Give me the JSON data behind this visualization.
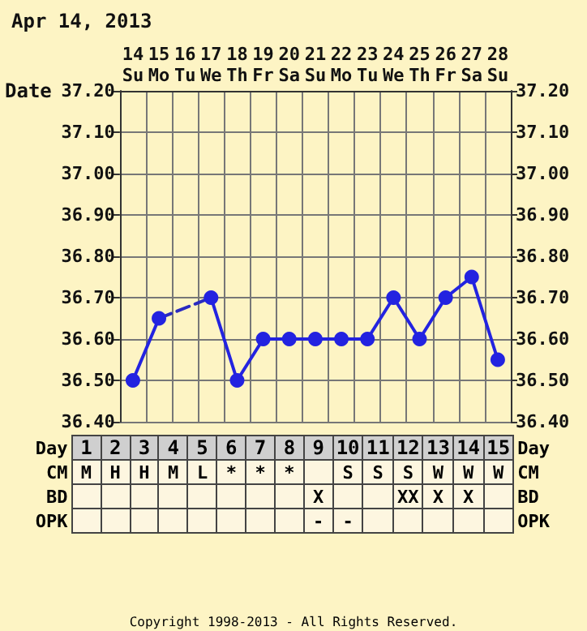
{
  "chart_data": {
    "type": "line",
    "title": "Apr 14, 2013",
    "xlabel": "Date",
    "categories": [
      "14\nSu",
      "15\nMo",
      "16\nTu",
      "17\nWe",
      "18\nTh",
      "19\nFr",
      "20\nSa",
      "21\nSu",
      "22\nMo",
      "23\nTu",
      "24\nWe",
      "25\nTh",
      "26\nFr",
      "27\nSa",
      "28\nSu"
    ],
    "series": [
      {
        "color": "#2323e0",
        "marker": "circle",
        "line_style": "solid",
        "values": [
          36.5,
          36.65,
          null,
          36.7,
          36.5,
          36.6,
          36.6,
          36.6,
          36.6,
          36.6,
          36.7,
          36.6,
          36.7,
          36.75,
          36.55
        ]
      },
      {
        "color": "#2a2ac0",
        "marker": "none",
        "line_style": "dashed",
        "x": [
          "15\nMo",
          "17\nWe"
        ],
        "values": [
          36.65,
          36.7
        ]
      }
    ],
    "ylim": [
      36.4,
      37.2
    ],
    "yticks": [
      {
        "value": 36.4,
        "label": "36.40"
      },
      {
        "value": 36.5,
        "label": "36.50"
      },
      {
        "value": 36.6,
        "label": "36.60"
      },
      {
        "value": 36.7,
        "label": "36.70"
      },
      {
        "value": 36.8,
        "label": "36.80"
      },
      {
        "value": 36.9,
        "label": "36.90"
      },
      {
        "value": 37.0,
        "label": "37.00"
      },
      {
        "value": 37.1,
        "label": "37.10"
      },
      {
        "value": 37.2,
        "label": "37.20"
      }
    ],
    "y2lim": [
      36.4,
      37.2
    ],
    "y2ticks": [
      {
        "value": 36.4,
        "label": "36.40"
      },
      {
        "value": 36.5,
        "label": "36.50"
      },
      {
        "value": 36.6,
        "label": "36.60"
      },
      {
        "value": 36.7,
        "label": "36.70"
      },
      {
        "value": 36.8,
        "label": "36.80"
      },
      {
        "value": 36.9,
        "label": "36.90"
      },
      {
        "value": 37.0,
        "label": "37.00"
      },
      {
        "value": 37.1,
        "label": "37.10"
      },
      {
        "value": 37.2,
        "label": "37.20"
      }
    ],
    "grid": true,
    "annotations": [
      "Day\t1\t2\t3\t4\t5\t6\t7\t8\t9\t10\t11\t12\t13\t14\t15\tDay",
      "CM\tM\tH\tH\tM\tL\t*\t*\t*\t\tS\tS\tS\tW\tW\tW\tCM",
      "BD\t\t\t\t\t\t\t\t\tX\t\t\tXX\tX\tX\t\tBD",
      "OPK\t\t\t\t\t\t\t\t\t-\t-\t\t\t\t\t\tOPK",
      "Copyright 1998-2013 - All Rights Reserved."
    ]
  }
}
